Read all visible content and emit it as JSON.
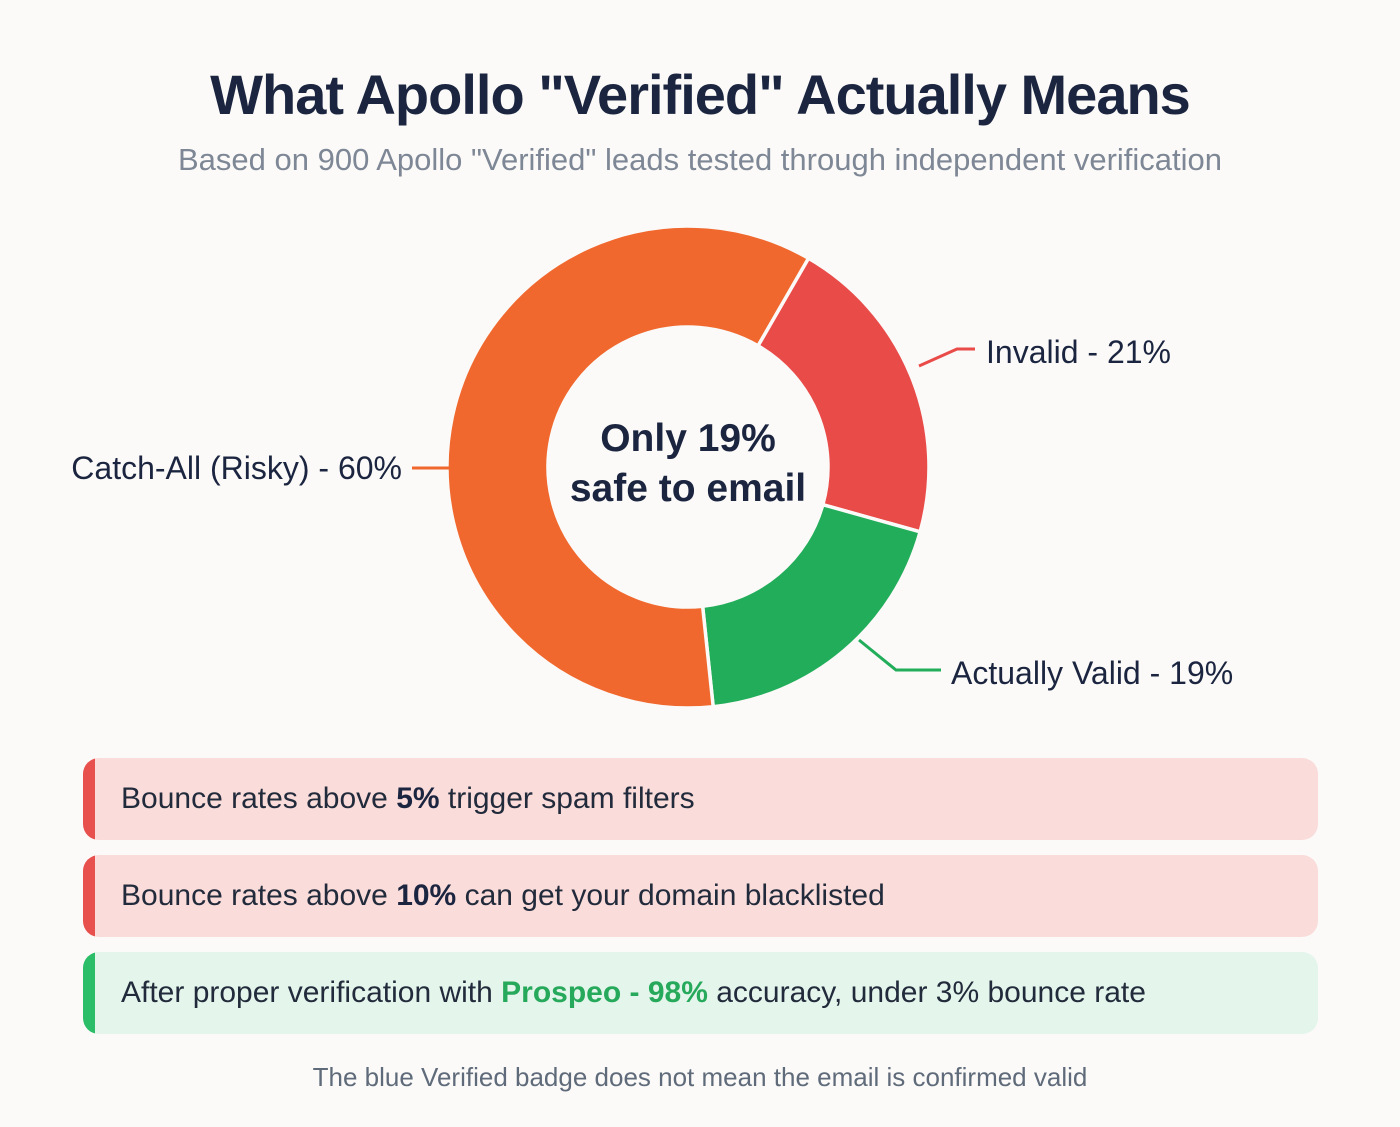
{
  "page": {
    "title": "What Apollo \"Verified\" Actually Means",
    "subtitle": "Based on 900 Apollo \"Verified\" leads tested through independent verification",
    "footer": "The blue Verified badge does not mean the email is confirmed valid"
  },
  "chart_data": {
    "type": "pie",
    "donut": true,
    "title": "What Apollo \"Verified\" Actually Means",
    "subtitle": "Based on 900 Apollo \"Verified\" leads tested through independent verification",
    "sample_size": 900,
    "start_angle_deg": 30,
    "legend_position": "outside-callout-lines",
    "slices": [
      {
        "name": "Invalid",
        "value": 21,
        "color": "#E94B49",
        "label": "Invalid - 21%"
      },
      {
        "name": "Actually Valid",
        "value": 19,
        "color": "#22AD5B",
        "label": "Actually Valid - 19%"
      },
      {
        "name": "Catch-All (Risky)",
        "value": 60,
        "color": "#F1682E",
        "label": "Catch-All (Risky) - 60%"
      }
    ],
    "center_label": {
      "line1": "Only 19%",
      "line2": "safe to email"
    }
  },
  "callouts": [
    {
      "bg": "#FADCDA",
      "accent": "#E8504E",
      "pre": "Bounce rates above ",
      "strong": "5%",
      "post": " trigger spam filters"
    },
    {
      "bg": "#FADCDA",
      "accent": "#E8504E",
      "pre": "Bounce rates above ",
      "strong": "10%",
      "post": " can get your domain blacklisted"
    },
    {
      "bg": "#E4F5EB",
      "accent": "#2BBD68",
      "pre": "After proper verification with ",
      "brand": "Prospeo",
      "dash": " - ",
      "pct": "98%",
      "post": " accuracy, under 3% bounce rate"
    }
  ],
  "colors": {
    "background": "#FBFAF8",
    "navy_text": "#1B2540",
    "subtitle_gray": "#7E8795",
    "footer_gray": "#5F6B7A",
    "green_text": "#27A95B",
    "orange_slice": "#F1682E",
    "red_slice": "#E94B49",
    "green_slice": "#22AD5B"
  }
}
